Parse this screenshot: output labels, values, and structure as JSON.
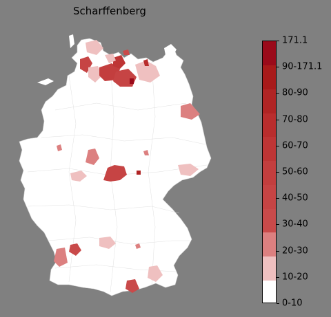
{
  "title": "Scharffenberg",
  "legend": {
    "labels": [
      "0-10",
      "10-20",
      "20-30",
      "30-40",
      "40-50",
      "50-60",
      "60-70",
      "70-80",
      "80-90",
      "90-171.1",
      "171.1"
    ],
    "colors": [
      "#ffffff",
      "#efc0c0",
      "#dc8080",
      "#c94a4a",
      "#c64444",
      "#c33e3e",
      "#be3535",
      "#b92d2d",
      "#b02424",
      "#a81a1a",
      "#9a0a1a"
    ]
  },
  "colors": {
    "background": "#808080",
    "land": "#ffffff",
    "border": "#cccccc"
  }
}
